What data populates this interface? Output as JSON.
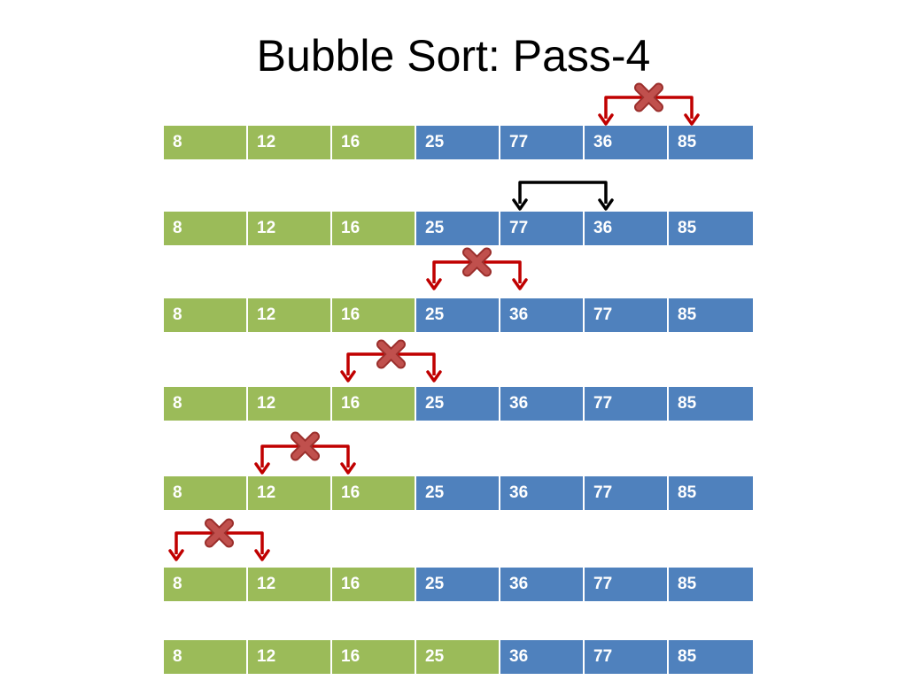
{
  "title": "Bubble Sort: Pass-4",
  "colors": {
    "sorted_cell": "#9bbb59",
    "unsorted_cell": "#4f81bd",
    "no_swap_arrow": "#c00000",
    "swap_arrow": "#000000",
    "no_swap_mark": "#c0504d"
  },
  "rows": [
    {
      "values": [
        "8",
        "12",
        "16",
        "25",
        "77",
        "36",
        "85"
      ],
      "colors": [
        "sorted",
        "sorted",
        "sorted",
        "unsorted",
        "unsorted",
        "unsorted",
        "unsorted"
      ]
    },
    {
      "values": [
        "8",
        "12",
        "16",
        "25",
        "77",
        "36",
        "85"
      ],
      "colors": [
        "sorted",
        "sorted",
        "sorted",
        "unsorted",
        "unsorted",
        "unsorted",
        "unsorted"
      ]
    },
    {
      "values": [
        "8",
        "12",
        "16",
        "25",
        "36",
        "77",
        "85"
      ],
      "colors": [
        "sorted",
        "sorted",
        "sorted",
        "unsorted",
        "unsorted",
        "unsorted",
        "unsorted"
      ]
    },
    {
      "values": [
        "8",
        "12",
        "16",
        "25",
        "36",
        "77",
        "85"
      ],
      "colors": [
        "sorted",
        "sorted",
        "sorted",
        "unsorted",
        "unsorted",
        "unsorted",
        "unsorted"
      ]
    },
    {
      "values": [
        "8",
        "12",
        "16",
        "25",
        "36",
        "77",
        "85"
      ],
      "colors": [
        "sorted",
        "sorted",
        "sorted",
        "unsorted",
        "unsorted",
        "unsorted",
        "unsorted"
      ]
    },
    {
      "values": [
        "8",
        "12",
        "16",
        "25",
        "36",
        "77",
        "85"
      ],
      "colors": [
        "sorted",
        "sorted",
        "sorted",
        "unsorted",
        "unsorted",
        "unsorted",
        "unsorted"
      ]
    },
    {
      "values": [
        "8",
        "12",
        "16",
        "25",
        "36",
        "77",
        "85"
      ],
      "colors": [
        "sorted",
        "sorted",
        "sorted",
        "sorted",
        "unsorted",
        "unsorted",
        "unsorted"
      ]
    }
  ],
  "comparisons": [
    {
      "cells": [
        5,
        6
      ],
      "swap": false
    },
    {
      "cells": [
        4,
        5
      ],
      "swap": true
    },
    {
      "cells": [
        3,
        4
      ],
      "swap": false
    },
    {
      "cells": [
        2,
        3
      ],
      "swap": false
    },
    {
      "cells": [
        1,
        2
      ],
      "swap": false
    },
    {
      "cells": [
        0,
        1
      ],
      "swap": false
    }
  ]
}
